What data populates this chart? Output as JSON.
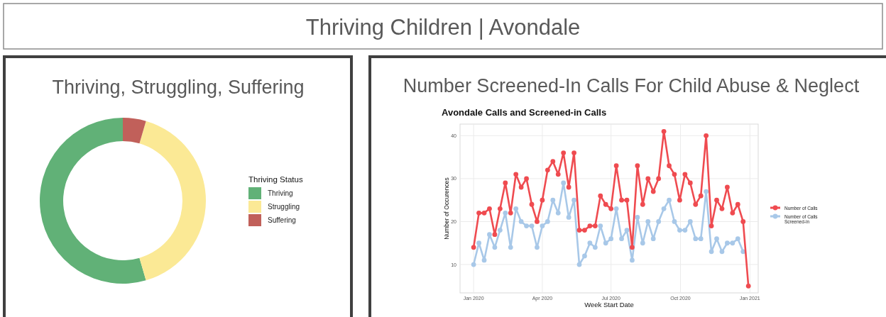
{
  "chart_data": [
    {
      "type": "other",
      "title": "Thriving Children | Avondale"
    },
    {
      "type": "donut",
      "title": "Thriving, Struggling, Suffering",
      "legend_title": "Thriving Status",
      "legend": "right",
      "categories": [
        "Thriving",
        "Struggling",
        "Suffering"
      ],
      "values": [
        54.5,
        41,
        4.5
      ],
      "colors": [
        "#61b177",
        "#fbe995",
        "#c1605a"
      ]
    },
    {
      "type": "line",
      "title": "Number Screened-In Calls For Child Abuse & Neglect",
      "subtitle": "Avondale Calls and Screened-in Calls",
      "xlabel": "Week Start Date",
      "ylabel": "Number of Occurences",
      "legend": "right",
      "grid": true,
      "marker": "circle",
      "x": [
        "2020-01-01",
        "2020-01-08",
        "2020-01-15",
        "2020-01-22",
        "2020-01-29",
        "2020-02-05",
        "2020-02-12",
        "2020-02-19",
        "2020-02-26",
        "2020-03-04",
        "2020-03-11",
        "2020-03-18",
        "2020-03-25",
        "2020-04-01",
        "2020-04-08",
        "2020-04-15",
        "2020-04-22",
        "2020-04-29",
        "2020-05-06",
        "2020-05-13",
        "2020-05-20",
        "2020-05-27",
        "2020-06-03",
        "2020-06-10",
        "2020-06-17",
        "2020-06-24",
        "2020-07-01",
        "2020-07-08",
        "2020-07-15",
        "2020-07-22",
        "2020-07-29",
        "2020-08-05",
        "2020-08-12",
        "2020-08-19",
        "2020-08-26",
        "2020-09-02",
        "2020-09-09",
        "2020-09-16",
        "2020-09-23",
        "2020-09-30",
        "2020-10-07",
        "2020-10-14",
        "2020-10-21",
        "2020-10-28",
        "2020-11-04",
        "2020-11-11",
        "2020-11-18",
        "2020-11-25",
        "2020-12-02",
        "2020-12-09",
        "2020-12-16",
        "2020-12-23",
        "2020-12-30"
      ],
      "xlim": [
        "2019-12-14",
        "2021-01-12"
      ],
      "xticks": [
        {
          "value": "2020-01-01",
          "label": "Jan 2020"
        },
        {
          "value": "2020-04-01",
          "label": "Apr 2020"
        },
        {
          "value": "2020-07-01",
          "label": "Jul 2020"
        },
        {
          "value": "2020-10-01",
          "label": "Oct 2020"
        },
        {
          "value": "2021-01-01",
          "label": "Jan 2021"
        }
      ],
      "ylim": [
        3.4,
        42.7
      ],
      "yticks": [
        10,
        20,
        30,
        40
      ],
      "series": [
        {
          "name": "Number of Calls",
          "color": "#ef4b50",
          "values": [
            14,
            22,
            22,
            23,
            17,
            23,
            29,
            22,
            31,
            28,
            30,
            24,
            20,
            25,
            32,
            34,
            31,
            36,
            28,
            36,
            18,
            18,
            19,
            19,
            26,
            24,
            23,
            33,
            25,
            25,
            14,
            33,
            24,
            30,
            27,
            30,
            41,
            33,
            31,
            25,
            31,
            29,
            24,
            26,
            40,
            19,
            25,
            23,
            28,
            22,
            24,
            20,
            5
          ]
        },
        {
          "name": "Number of Calls Screened-in",
          "color": "#a8c8e8",
          "values": [
            10,
            15,
            11,
            17,
            14,
            18,
            22,
            14,
            23,
            20,
            19,
            19,
            14,
            19,
            20,
            25,
            22,
            29,
            21,
            25,
            10,
            12,
            15,
            14,
            19,
            15,
            16,
            23,
            16,
            18,
            11,
            21,
            15,
            20,
            16,
            20,
            23,
            25,
            20,
            18,
            18,
            20,
            16,
            16,
            27,
            13,
            16,
            13,
            15,
            15,
            16,
            13,
            null
          ]
        }
      ]
    }
  ]
}
